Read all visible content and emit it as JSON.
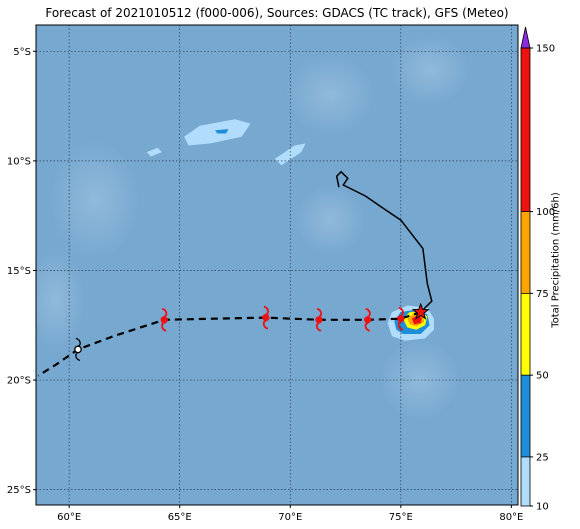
{
  "title": "Forecast of 2021010512 (f000-006), Sources: GDACS (TC track), GFS (Meteo)",
  "map": {
    "lon_range": [
      58.5,
      80.3
    ],
    "lat_range": [
      -25.7,
      -3.8
    ],
    "lon_ticks": [
      {
        "value": 60,
        "label": "60°E"
      },
      {
        "value": 65,
        "label": "65°E"
      },
      {
        "value": 70,
        "label": "70°E"
      },
      {
        "value": 75,
        "label": "75°E"
      },
      {
        "value": 80,
        "label": "80°E"
      }
    ],
    "lat_ticks": [
      {
        "value": -5,
        "label": "5°S"
      },
      {
        "value": -10,
        "label": "10°S"
      },
      {
        "value": -15,
        "label": "15°S"
      },
      {
        "value": -20,
        "label": "20°S"
      },
      {
        "value": -25,
        "label": "25°S"
      }
    ],
    "grid": true,
    "ocean_color": "#77a8d0"
  },
  "observed_track": [
    [
      72.2,
      -11.2
    ],
    [
      72.1,
      -10.7
    ],
    [
      72.3,
      -10.5
    ],
    [
      72.6,
      -10.8
    ],
    [
      72.4,
      -11.1
    ],
    [
      73.4,
      -11.6
    ],
    [
      74.4,
      -12.3
    ],
    [
      75.0,
      -12.7
    ],
    [
      76.0,
      -14.0
    ],
    [
      76.2,
      -15.6
    ],
    [
      76.4,
      -16.4
    ],
    [
      76.1,
      -16.7
    ],
    [
      75.9,
      -16.9
    ]
  ],
  "forecast_track": [
    [
      75.9,
      -16.9
    ],
    [
      75.0,
      -17.2
    ],
    [
      73.5,
      -17.25
    ],
    [
      71.3,
      -17.25
    ],
    [
      68.9,
      -17.15
    ],
    [
      66.5,
      -17.2
    ],
    [
      64.3,
      -17.25
    ],
    [
      62.0,
      -18.0
    ],
    [
      60.4,
      -18.6
    ],
    [
      59.4,
      -19.3
    ],
    [
      58.6,
      -19.8
    ]
  ],
  "current_position": {
    "lon": 75.9,
    "lat": -16.9
  },
  "cyclone_symbols": [
    {
      "lon": 75.0,
      "lat": -17.2,
      "kind": "cyclone"
    },
    {
      "lon": 73.5,
      "lat": -17.25,
      "kind": "cyclone"
    },
    {
      "lon": 71.3,
      "lat": -17.25,
      "kind": "cyclone"
    },
    {
      "lon": 68.9,
      "lat": -17.15,
      "kind": "cyclone"
    },
    {
      "lon": 64.3,
      "lat": -17.25,
      "kind": "cyclone"
    },
    {
      "lon": 60.4,
      "lat": -18.6,
      "kind": "low"
    }
  ],
  "precip_areas": [
    {
      "level": 10,
      "color": "#b2dcfb",
      "points": [
        [
          65.2,
          -8.9
        ],
        [
          65.9,
          -8.4
        ],
        [
          67.5,
          -8.1
        ],
        [
          68.2,
          -8.3
        ],
        [
          67.8,
          -8.9
        ],
        [
          66.4,
          -9.2
        ],
        [
          65.4,
          -9.3
        ]
      ]
    },
    {
      "level": 10,
      "color": "#b2dcfb",
      "points": [
        [
          69.3,
          -9.9
        ],
        [
          70.2,
          -9.3
        ],
        [
          70.7,
          -9.2
        ],
        [
          70.5,
          -9.6
        ],
        [
          69.6,
          -10.2
        ]
      ]
    },
    {
      "level": 10,
      "color": "#b2dcfb",
      "points": [
        [
          63.5,
          -9.6
        ],
        [
          64.0,
          -9.4
        ],
        [
          64.2,
          -9.6
        ],
        [
          63.7,
          -9.8
        ]
      ]
    },
    {
      "level": 10,
      "color": "#b2dcfb",
      "points": [
        [
          74.4,
          -17.4
        ],
        [
          74.6,
          -16.9
        ],
        [
          75.3,
          -16.6
        ],
        [
          76.2,
          -16.7
        ],
        [
          76.5,
          -17.2
        ],
        [
          76.5,
          -17.7
        ],
        [
          76.1,
          -18.1
        ],
        [
          75.2,
          -18.2
        ],
        [
          74.6,
          -18.0
        ]
      ]
    },
    {
      "level": 25,
      "color": "#1e8ed8",
      "points": [
        [
          74.7,
          -17.3
        ],
        [
          75.0,
          -16.9
        ],
        [
          75.6,
          -16.8
        ],
        [
          76.2,
          -17.0
        ],
        [
          76.3,
          -17.5
        ],
        [
          75.9,
          -17.9
        ],
        [
          75.1,
          -17.9
        ],
        [
          74.8,
          -17.7
        ]
      ]
    },
    {
      "level": 25,
      "color": "#1e8ed8",
      "points": [
        [
          66.6,
          -8.6
        ],
        [
          67.2,
          -8.55
        ],
        [
          67.1,
          -8.75
        ],
        [
          66.7,
          -8.75
        ]
      ]
    },
    {
      "level": 50,
      "color": "#ffff00",
      "points": [
        [
          75.1,
          -17.2
        ],
        [
          75.4,
          -16.9
        ],
        [
          75.9,
          -16.85
        ],
        [
          76.2,
          -17.1
        ],
        [
          76.1,
          -17.5
        ],
        [
          75.7,
          -17.7
        ],
        [
          75.3,
          -17.6
        ]
      ]
    },
    {
      "level": 75,
      "color": "#ffa500",
      "points": [
        [
          75.3,
          -17.2
        ],
        [
          75.6,
          -16.95
        ],
        [
          76.0,
          -17.0
        ],
        [
          76.05,
          -17.35
        ],
        [
          75.7,
          -17.55
        ],
        [
          75.4,
          -17.45
        ]
      ]
    },
    {
      "level": 100,
      "color": "#ee1111",
      "points": [
        [
          75.5,
          -17.2
        ],
        [
          75.75,
          -17.05
        ],
        [
          75.95,
          -17.15
        ],
        [
          75.9,
          -17.4
        ],
        [
          75.6,
          -17.45
        ]
      ]
    }
  ],
  "colorbar": {
    "label": "Total Precipitation (mm/6h)",
    "min": 10,
    "max": 150,
    "levels": [
      10,
      25,
      50,
      75,
      100,
      150
    ],
    "colors": [
      "#b2dcfb",
      "#1e8ed8",
      "#ffff00",
      "#ffa500",
      "#ee1111"
    ],
    "extend_color": "#8a2be2",
    "tick_labels": [
      "10",
      "25",
      "50",
      "75",
      "100",
      "150"
    ]
  }
}
